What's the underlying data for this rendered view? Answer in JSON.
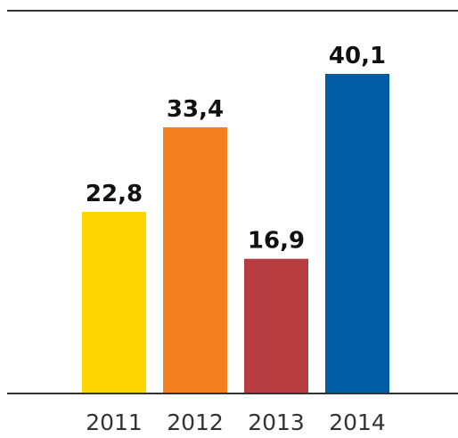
{
  "chart_data": {
    "type": "bar",
    "title": "",
    "xlabel": "",
    "ylabel": "",
    "categories": [
      "2011",
      "2012",
      "2013",
      "2014"
    ],
    "values": [
      22.8,
      33.4,
      16.9,
      40.1
    ],
    "value_labels": [
      "22,8",
      "33,4",
      "16,9",
      "40,1"
    ],
    "colors": [
      "#ffd700",
      "#f28021",
      "#b83d41",
      "#005da4"
    ],
    "ylim": [
      0,
      40.1
    ],
    "grid": false,
    "legend": "none"
  }
}
